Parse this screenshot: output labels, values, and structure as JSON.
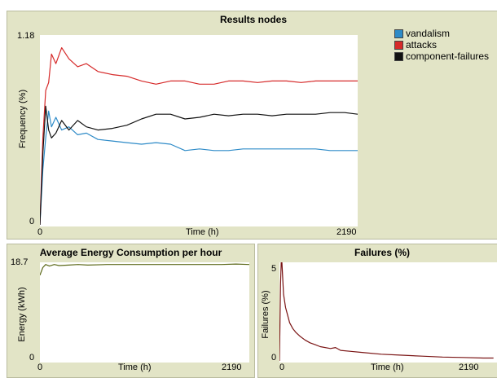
{
  "chart_data": [
    {
      "id": "results-nodes",
      "type": "line",
      "title": "Results nodes",
      "xlabel": "Time (h)",
      "ylabel": "Frequency (%)",
      "xlim": [
        0,
        2190
      ],
      "ylim": [
        0,
        1.18
      ],
      "x_ticks": [
        "0",
        "2190"
      ],
      "y_ticks": [
        "0",
        "1.18"
      ],
      "grid": false,
      "legend": "top-right",
      "series": [
        {
          "name": "vandalism",
          "color": "#2e8bc8",
          "x": [
            0,
            20,
            40,
            60,
            80,
            110,
            150,
            200,
            260,
            320,
            400,
            500,
            600,
            700,
            800,
            900,
            1000,
            1100,
            1200,
            1300,
            1400,
            1500,
            1600,
            1700,
            1800,
            1900,
            2000,
            2100,
            2190
          ],
          "y": [
            0,
            0.35,
            0.55,
            0.72,
            0.62,
            0.68,
            0.6,
            0.62,
            0.57,
            0.58,
            0.54,
            0.53,
            0.52,
            0.51,
            0.52,
            0.51,
            0.47,
            0.48,
            0.47,
            0.47,
            0.48,
            0.48,
            0.48,
            0.48,
            0.48,
            0.48,
            0.47,
            0.47,
            0.47
          ]
        },
        {
          "name": "attacks",
          "color": "#d62a2a",
          "x": [
            0,
            20,
            40,
            60,
            80,
            110,
            150,
            200,
            260,
            320,
            400,
            500,
            600,
            700,
            800,
            900,
            1000,
            1100,
            1200,
            1300,
            1400,
            1500,
            1600,
            1700,
            1800,
            1900,
            2000,
            2100,
            2190
          ],
          "y": [
            0,
            0.55,
            0.85,
            0.9,
            1.08,
            1.02,
            1.12,
            1.05,
            1.0,
            1.02,
            0.97,
            0.95,
            0.94,
            0.91,
            0.89,
            0.91,
            0.91,
            0.89,
            0.89,
            0.91,
            0.91,
            0.9,
            0.91,
            0.91,
            0.9,
            0.91,
            0.91,
            0.91,
            0.91
          ]
        },
        {
          "name": "component-failures",
          "color": "#111111",
          "x": [
            0,
            20,
            40,
            60,
            80,
            110,
            150,
            200,
            260,
            320,
            400,
            500,
            600,
            700,
            800,
            900,
            1000,
            1100,
            1200,
            1300,
            1400,
            1500,
            1600,
            1700,
            1800,
            1900,
            2000,
            2100,
            2190
          ],
          "y": [
            0,
            0.45,
            0.75,
            0.6,
            0.55,
            0.58,
            0.66,
            0.6,
            0.66,
            0.62,
            0.6,
            0.61,
            0.63,
            0.67,
            0.7,
            0.7,
            0.67,
            0.68,
            0.7,
            0.69,
            0.7,
            0.7,
            0.69,
            0.7,
            0.7,
            0.7,
            0.71,
            0.71,
            0.7
          ]
        }
      ]
    },
    {
      "id": "energy",
      "type": "line",
      "title": "Average Energy Consumption per hour",
      "xlabel": "Time (h)",
      "ylabel": "Energy (kWh)",
      "xlim": [
        0,
        2190
      ],
      "ylim": [
        0,
        18.7
      ],
      "x_ticks": [
        "0",
        "2190"
      ],
      "y_ticks": [
        "0",
        "18.7"
      ],
      "grid": false,
      "series": [
        {
          "color": "#5d6a1a",
          "x": [
            0,
            30,
            60,
            100,
            150,
            200,
            300,
            400,
            500,
            700,
            900,
            1100,
            1300,
            1500,
            1700,
            1900,
            2050,
            2190
          ],
          "y": [
            16.8,
            18.3,
            18.9,
            18.6,
            18.9,
            18.7,
            18.8,
            18.9,
            18.8,
            18.9,
            18.9,
            18.9,
            18.9,
            18.9,
            18.9,
            18.9,
            19.0,
            18.9
          ]
        }
      ]
    },
    {
      "id": "failures",
      "type": "line",
      "title": "Failures (%)",
      "xlabel": "Time (h)",
      "ylabel": "Failures (%)",
      "xlim": [
        0,
        2190
      ],
      "ylim": [
        0,
        5
      ],
      "x_ticks": [
        "0",
        "2190"
      ],
      "y_ticks": [
        "0",
        "5"
      ],
      "grid": false,
      "series": [
        {
          "color": "#7a1414",
          "x": [
            0,
            10,
            20,
            30,
            40,
            60,
            80,
            100,
            130,
            160,
            200,
            250,
            300,
            350,
            400,
            500,
            550,
            600,
            700,
            800,
            1000,
            1200,
            1400,
            1600,
            1800,
            2000,
            2100
          ],
          "y": [
            0,
            4.0,
            5.6,
            4.5,
            3.5,
            2.8,
            2.4,
            2.0,
            1.7,
            1.5,
            1.3,
            1.1,
            0.95,
            0.85,
            0.75,
            0.65,
            0.7,
            0.55,
            0.5,
            0.45,
            0.35,
            0.3,
            0.25,
            0.2,
            0.18,
            0.15,
            0.15
          ]
        }
      ]
    }
  ]
}
